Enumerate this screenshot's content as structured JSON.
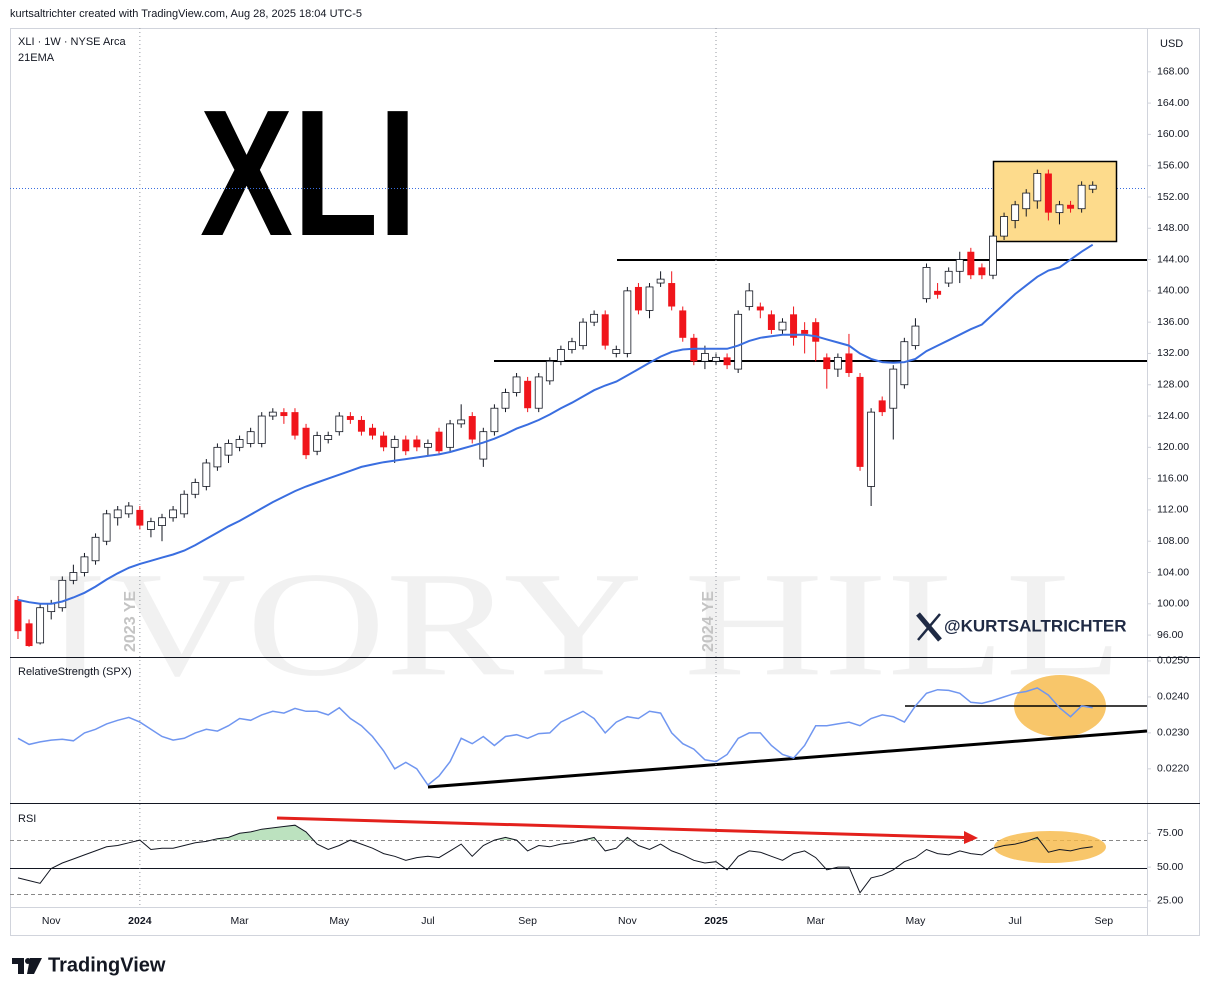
{
  "header": "kurtsaltrichter created with TradingView.com, Aug 28, 2025 18:04 UTC-5",
  "footer": "TradingView",
  "chart_data": [
    {
      "type": "candlestick",
      "title": "XLI · 1W · NYSE Arca",
      "unit": "USD",
      "annotations": [
        "XLI",
        "2023 YE",
        "2024 YE",
        "@KURTSALTRICHTER",
        "IVORY HILL"
      ],
      "up_color": "#ffffff",
      "down_color": "#f0151b",
      "open": [
        100.5,
        97.5,
        95,
        99,
        99.5,
        103,
        104,
        105.5,
        108,
        111,
        111.5,
        112,
        109.5,
        110,
        111,
        111.5,
        114,
        115,
        117.5,
        119,
        120,
        120.5,
        120.5,
        124,
        124.5,
        124.5,
        122.5,
        119.5,
        121,
        122,
        124,
        123.5,
        122.5,
        121.5,
        120,
        121,
        121,
        120,
        122,
        120,
        123,
        124,
        118.5,
        122,
        125,
        127,
        128.5,
        125,
        128.5,
        131,
        132.5,
        133,
        136,
        137,
        132,
        132,
        140.5,
        137.5,
        141,
        141,
        137.5,
        134,
        131,
        131,
        131.5,
        130,
        138,
        138,
        137,
        135,
        137,
        135,
        136,
        131.5,
        130,
        132,
        129,
        115,
        126,
        125,
        128,
        133,
        139,
        140,
        141,
        142.5,
        145,
        143,
        142,
        147,
        149,
        150.5,
        151.5,
        155,
        150,
        151,
        150.5,
        153
      ],
      "high": [
        101,
        98,
        100,
        100.5,
        103.5,
        105,
        106.5,
        109,
        112,
        112.5,
        113,
        112.5,
        111,
        111.5,
        112.5,
        114.5,
        116,
        118.5,
        120.5,
        121,
        121.5,
        122.5,
        124.5,
        125,
        125,
        125,
        123,
        122,
        122,
        124.5,
        124.5,
        124,
        123,
        122,
        121.5,
        121.5,
        121.5,
        121,
        122.5,
        123.5,
        125.5,
        124.5,
        122.5,
        125.5,
        127.5,
        129.5,
        129,
        129.5,
        131.5,
        133,
        134,
        136.5,
        137.5,
        137.5,
        133,
        140.5,
        141,
        141,
        142.5,
        142.5,
        138,
        134.5,
        133,
        132,
        132,
        137.5,
        141,
        138.5,
        137.5,
        136.5,
        138,
        136,
        136.5,
        132,
        132,
        134.5,
        129.5,
        125,
        126.5,
        130.5,
        134,
        136.5,
        143.5,
        141,
        143,
        145,
        145.5,
        143.5,
        147.5,
        150,
        151.5,
        153,
        155.5,
        155.5,
        151.5,
        151.5,
        154,
        154
      ],
      "low": [
        95.5,
        94.5,
        94.8,
        98,
        99,
        102.5,
        103.5,
        105,
        107.5,
        110,
        111,
        109.5,
        108.5,
        108,
        110.5,
        111,
        113.5,
        114.5,
        117,
        118,
        119.5,
        120,
        120,
        123.5,
        123,
        121,
        118.5,
        119,
        120.5,
        121.5,
        123,
        121.5,
        121,
        119.5,
        118,
        119,
        119.5,
        119,
        119,
        119.5,
        122.5,
        120.5,
        117.5,
        121.5,
        124.5,
        126.5,
        124.5,
        124.5,
        128,
        130.5,
        132,
        132.5,
        135.5,
        132.5,
        131.5,
        131.5,
        137,
        136.5,
        140.5,
        137.5,
        133.5,
        130.5,
        130,
        130.5,
        130,
        129.5,
        137.5,
        136.5,
        134.5,
        134.5,
        133,
        132,
        131,
        127.5,
        129,
        129,
        117,
        112.5,
        124,
        121,
        127.5,
        132.5,
        138.5,
        139,
        140.5,
        141,
        141.5,
        141.5,
        141.5,
        146.5,
        148,
        149.5,
        150.5,
        149,
        148.5,
        150,
        150,
        152.5
      ],
      "close": [
        96.5,
        94.6,
        99.5,
        100,
        103,
        104,
        106,
        108.5,
        111.5,
        112,
        112.5,
        110,
        110.5,
        111,
        112,
        114,
        115.5,
        118,
        120,
        120.5,
        121,
        122,
        124,
        124.5,
        124,
        121.5,
        119,
        121.5,
        121.5,
        124,
        123.5,
        122,
        121.5,
        120,
        121,
        119.5,
        120,
        120.5,
        119.5,
        123,
        123.5,
        121,
        122,
        125,
        127,
        129,
        125,
        129,
        131,
        132.5,
        133.5,
        136,
        137,
        133,
        132.5,
        140,
        137.5,
        140.5,
        141.5,
        138,
        134,
        131,
        132,
        131.5,
        130.5,
        137,
        140,
        137.5,
        135,
        136,
        134,
        134.5,
        133.5,
        130,
        131.5,
        129.5,
        117.5,
        124.5,
        124.5,
        130,
        133.5,
        135.5,
        143,
        139.5,
        142.5,
        144,
        142,
        142,
        147,
        149.5,
        151,
        152.5,
        155,
        150,
        151,
        150.5,
        153.5,
        153.5
      ],
      "series": [
        {
          "name": "21EMA",
          "color": "#3a6ee0",
          "values": [
            100.5,
            100.2,
            100,
            100,
            100.3,
            100.8,
            101.4,
            102.2,
            103.1,
            103.9,
            104.6,
            105.1,
            105.5,
            105.9,
            106.3,
            106.8,
            107.5,
            108.3,
            109.1,
            109.9,
            110.6,
            111.4,
            112.2,
            113,
            113.7,
            114.4,
            115,
            115.5,
            116,
            116.5,
            117,
            117.5,
            117.8,
            118.1,
            118.3,
            118.5,
            118.7,
            118.9,
            119.1,
            119.4,
            119.8,
            120.2,
            120.6,
            121.1,
            121.7,
            122.4,
            122.9,
            123.5,
            124.2,
            125,
            125.7,
            126.5,
            127.3,
            127.9,
            128.4,
            129.2,
            130,
            130.8,
            131.6,
            132.2,
            132.5,
            132.6,
            132.6,
            132.6,
            132.6,
            133,
            133.6,
            134,
            134.2,
            134.4,
            134.4,
            134.4,
            134.2,
            133.8,
            133.4,
            133,
            132,
            131.3,
            130.9,
            130.8,
            130.9,
            131.3,
            132.3,
            133,
            133.7,
            134.4,
            135.1,
            135.7,
            137,
            138.3,
            139.6,
            140.7,
            141.8,
            142.6,
            143,
            144,
            145,
            145.9
          ]
        }
      ],
      "xlim": [
        -0.72,
        101.9
      ],
      "xticks": [
        {
          "value": 3,
          "label": "Nov"
        },
        {
          "value": 11,
          "label": "2024"
        },
        {
          "value": 20,
          "label": "Mar"
        },
        {
          "value": 29,
          "label": "May"
        },
        {
          "value": 37,
          "label": "Jul"
        },
        {
          "value": 46,
          "label": "Sep"
        },
        {
          "value": 55,
          "label": "Nov"
        },
        {
          "value": 63,
          "label": "2025"
        },
        {
          "value": 72,
          "label": "Mar"
        },
        {
          "value": 81,
          "label": "May"
        },
        {
          "value": 90,
          "label": "Jul"
        },
        {
          "value": 98,
          "label": "Sep"
        }
      ],
      "ylim": [
        93.2,
        173.6
      ],
      "yticks": [
        {
          "value": 96,
          "label": "96.00"
        },
        {
          "value": 100,
          "label": "100.00"
        },
        {
          "value": 104,
          "label": "104.00"
        },
        {
          "value": 108,
          "label": "108.00"
        },
        {
          "value": 112,
          "label": "112.00"
        },
        {
          "value": 116,
          "label": "116.00"
        },
        {
          "value": 120,
          "label": "120.00"
        },
        {
          "value": 124,
          "label": "124.00"
        },
        {
          "value": 128,
          "label": "128.00"
        },
        {
          "value": 132,
          "label": "132.00"
        },
        {
          "value": 136,
          "label": "136.00"
        },
        {
          "value": 140,
          "label": "140.00"
        },
        {
          "value": 144,
          "label": "144.00"
        },
        {
          "value": 148,
          "label": "148.00"
        },
        {
          "value": 152,
          "label": "152.00"
        },
        {
          "value": 156,
          "label": "156.00"
        },
        {
          "value": 160,
          "label": "160.00"
        },
        {
          "value": 164,
          "label": "164.00"
        },
        {
          "value": 168,
          "label": "168.00"
        }
      ]
    },
    {
      "type": "line",
      "title": "RelativeStrength (SPX)",
      "series": [
        {
          "color": "#7096f0",
          "values": [
            0.02285,
            0.02268,
            0.02275,
            0.0228,
            0.02282,
            0.02278,
            0.023,
            0.0231,
            0.02325,
            0.02335,
            0.02343,
            0.0233,
            0.0231,
            0.0229,
            0.0228,
            0.02285,
            0.023,
            0.0231,
            0.02305,
            0.0232,
            0.0234,
            0.02335,
            0.0235,
            0.0236,
            0.02355,
            0.02368,
            0.0236,
            0.0236,
            0.0235,
            0.0237,
            0.0234,
            0.0232,
            0.0229,
            0.0225,
            0.022,
            0.02218,
            0.022,
            0.02155,
            0.0218,
            0.0222,
            0.02285,
            0.0227,
            0.0229,
            0.02265,
            0.0229,
            0.02295,
            0.02285,
            0.02298,
            0.023,
            0.0233,
            0.02345,
            0.0236,
            0.0234,
            0.023,
            0.0233,
            0.02345,
            0.0234,
            0.0236,
            0.02355,
            0.023,
            0.0227,
            0.02255,
            0.02225,
            0.0222,
            0.0224,
            0.02285,
            0.023,
            0.023,
            0.02265,
            0.0224,
            0.0223,
            0.02265,
            0.0232,
            0.0232,
            0.02325,
            0.0233,
            0.0232,
            0.0234,
            0.0235,
            0.02345,
            0.0233,
            0.02375,
            0.0241,
            0.0242,
            0.02418,
            0.0241,
            0.02385,
            0.02382,
            0.0239,
            0.024,
            0.0241,
            0.02415,
            0.02425,
            0.02405,
            0.0237,
            0.02345,
            0.02375,
            0.0237
          ]
        }
      ],
      "ylim": [
        0.02105,
        0.02511
      ],
      "yticks": [
        {
          "value": 0.022,
          "label": "0.0220"
        },
        {
          "value": 0.023,
          "label": "0.0230"
        },
        {
          "value": 0.024,
          "label": "0.0240"
        },
        {
          "value": 0.025,
          "label": "0.0250"
        }
      ]
    },
    {
      "type": "line",
      "title": "RSI",
      "series": [
        {
          "color": "#131722",
          "values": [
            42,
            40,
            38,
            49,
            53,
            56,
            59,
            62,
            65,
            66,
            68,
            70,
            63,
            64,
            64,
            66,
            68,
            69,
            71,
            72,
            75,
            76,
            78,
            79,
            80,
            81,
            76,
            67,
            63,
            66,
            70,
            67,
            64,
            60,
            58,
            55,
            57,
            58,
            57,
            62,
            67,
            58,
            66,
            70,
            72,
            70,
            62,
            66,
            65,
            67,
            68,
            70,
            72,
            62,
            64,
            72,
            66,
            63,
            67,
            62,
            59,
            55,
            53,
            54,
            48,
            58,
            62,
            61,
            58,
            55,
            60,
            62,
            57,
            48,
            50,
            50,
            31,
            42,
            44,
            48,
            54,
            57,
            63,
            60,
            59,
            62,
            60,
            59,
            64,
            66,
            67,
            69,
            72,
            61,
            63,
            62,
            64,
            65
          ]
        }
      ],
      "ylim": [
        20.5,
        97.4
      ],
      "yticks": [
        {
          "value": 25,
          "label": "25.00"
        },
        {
          "value": 50,
          "label": "50.00"
        },
        {
          "value": 75,
          "label": "75.00"
        }
      ]
    }
  ]
}
